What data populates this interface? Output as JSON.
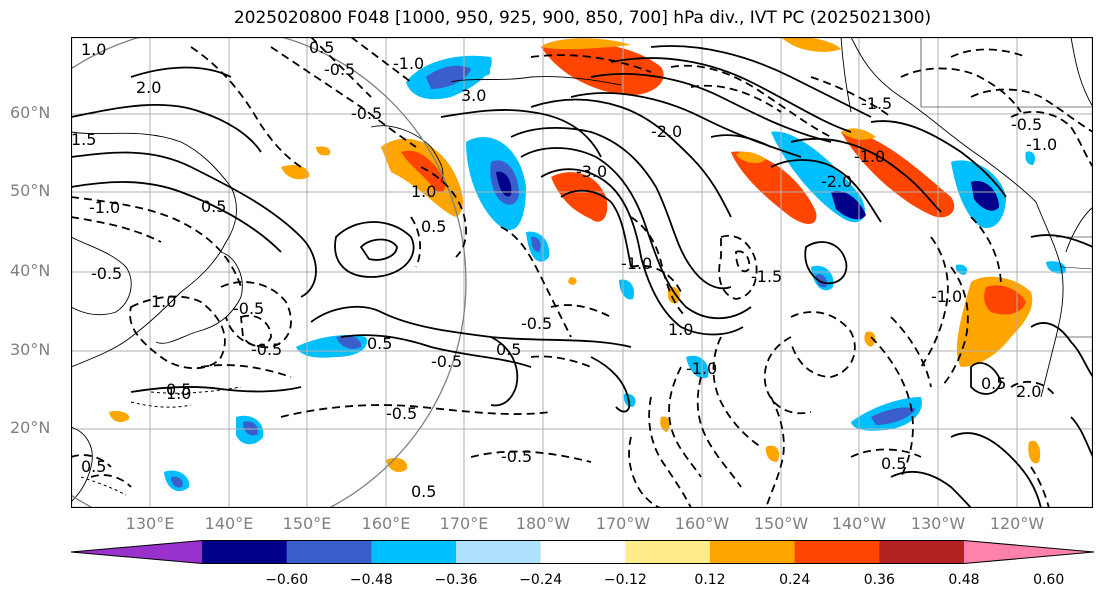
{
  "title": "2025020800 F048 [1000, 950, 925, 900, 850, 700] hPa div., IVT PC (2025021300)",
  "lat_labels": [
    "60°N",
    "50°N",
    "40°N",
    "30°N",
    "20°N"
  ],
  "lon_labels": [
    "130°E",
    "140°E",
    "150°E",
    "160°E",
    "170°E",
    "180°W",
    "170°W",
    "160°W",
    "150°W",
    "140°W",
    "130°W",
    "120°W"
  ],
  "colorbar": {
    "ticks": [
      "−0.60",
      "−0.48",
      "−0.36",
      "−0.24",
      "−0.12",
      "0.12",
      "0.24",
      "0.36",
      "0.48",
      "0.60"
    ],
    "colors": [
      "#9932cc",
      "#00008b",
      "#3a5fcd",
      "#00bfff",
      "#b0e2ff",
      "#ffffff",
      "#ffec8b",
      "#ffa500",
      "#ff4500",
      "#b22222",
      "#ff82ab"
    ]
  },
  "contour_labels": [
    "1.0",
    "0.5",
    "-0.5",
    "2.0",
    "1.5",
    "-1.0",
    "0.5",
    "-0.5",
    "-1.0",
    "3.0",
    "-3.0",
    "-2.0",
    "1.0",
    "-1.5",
    "-0.5",
    "-1.0",
    "0.5",
    "1.0",
    "-0.5",
    "0.5",
    "-0.5",
    "1.0",
    "-1.0",
    "1.0",
    "-0.5",
    "-1.0",
    "-0.5",
    "0.5",
    "0.5",
    "-1.5",
    "-0.5",
    "0.5",
    "-2.0",
    "-1.0",
    "0.5",
    "-0.5",
    "-1.0",
    "-0.5",
    "0.5",
    "2.0",
    "0.5"
  ]
}
